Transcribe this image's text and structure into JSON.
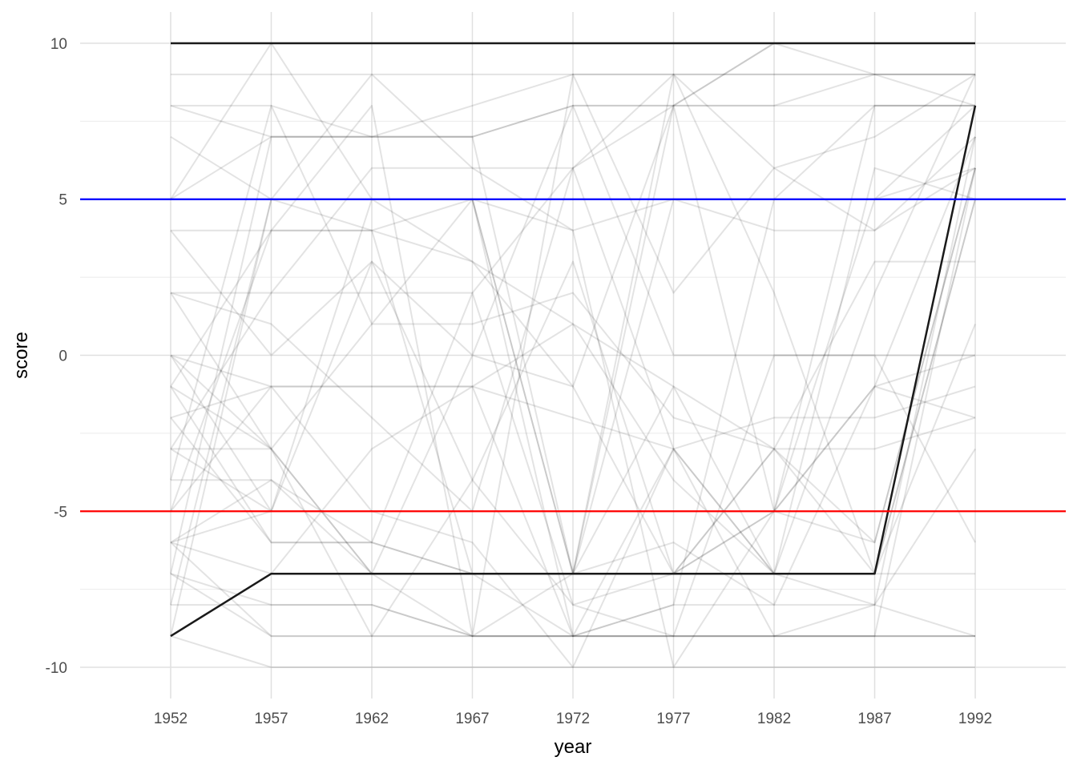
{
  "chart_data": {
    "type": "line",
    "title": "",
    "xlabel": "year",
    "ylabel": "score",
    "x": [
      1952,
      1957,
      1962,
      1967,
      1972,
      1977,
      1982,
      1987,
      1992
    ],
    "xlim": [
      1947.5,
      1996.5
    ],
    "ylim": [
      -11.0,
      11.0
    ],
    "y_ticks": [
      -10,
      -5,
      0,
      5,
      10
    ],
    "y_minor_ticks": [
      -7.5,
      -2.5,
      2.5,
      7.5
    ],
    "grid": true,
    "legend": "none",
    "reference_lines": [
      {
        "y": 5,
        "color": "#0000ff"
      },
      {
        "y": -5,
        "color": "#ff0000"
      }
    ],
    "highlighted_series": [
      {
        "values": [
          10,
          10,
          10,
          10,
          10,
          10,
          10,
          10,
          10
        ],
        "color": "#1a1a1a"
      },
      {
        "values": [
          -9,
          -7,
          -7,
          -7,
          -7,
          -7,
          -7,
          -7,
          8
        ],
        "color": "#1a1a1a"
      }
    ],
    "background_series": [
      {
        "values": [
          8,
          8,
          7,
          7,
          8,
          8,
          8,
          9,
          9
        ]
      },
      {
        "values": [
          8,
          7,
          7,
          8,
          9,
          9,
          9,
          9,
          8
        ]
      },
      {
        "values": [
          9,
          9,
          9,
          9,
          9,
          9,
          9,
          9,
          9
        ]
      },
      {
        "values": [
          7,
          5,
          5,
          5,
          4,
          5,
          5,
          5,
          6
        ]
      },
      {
        "values": [
          5,
          7,
          7,
          7,
          8,
          8,
          8,
          8,
          8
        ]
      },
      {
        "values": [
          4,
          4,
          4,
          3,
          1,
          -1,
          -3,
          -6,
          6
        ]
      },
      {
        "values": [
          2,
          2,
          2,
          2,
          6,
          9,
          6,
          7,
          9
        ]
      },
      {
        "values": [
          0,
          -1,
          -1,
          -1,
          -2,
          -3,
          -7,
          -7,
          5
        ]
      },
      {
        "values": [
          2,
          -3,
          -7,
          -7,
          -9,
          -9,
          -9,
          -9,
          6
        ]
      },
      {
        "values": [
          -1,
          -3,
          -7,
          -9,
          -9,
          -8,
          -8,
          -8,
          7
        ]
      },
      {
        "values": [
          -2,
          -6,
          -6,
          -7,
          -7,
          -7,
          -5,
          5,
          8
        ]
      },
      {
        "values": [
          -3,
          -5,
          -5,
          -5,
          -5,
          -5,
          -5,
          -1,
          0
        ]
      },
      {
        "values": [
          -4,
          -4,
          -6,
          -7,
          -7,
          -6,
          -8,
          -1,
          7
        ]
      },
      {
        "values": [
          -6,
          -9,
          -9,
          -9,
          -9,
          -9,
          -9,
          -9,
          -9
        ]
      },
      {
        "values": [
          -7,
          -9,
          -9,
          -9,
          -9,
          -9,
          -9,
          -9,
          -9
        ]
      },
      {
        "values": [
          -8,
          -8,
          -8,
          -9,
          -9,
          -9,
          -9,
          -9,
          -9
        ]
      },
      {
        "values": [
          -9,
          -10,
          -10,
          -10,
          -10,
          -10,
          -10,
          -10,
          -10
        ]
      },
      {
        "values": [
          -6,
          -5,
          5,
          5,
          -7,
          -7,
          -5,
          8,
          8
        ]
      },
      {
        "values": [
          5,
          10,
          5,
          3,
          -1,
          -7,
          -7,
          -7,
          5
        ]
      },
      {
        "values": [
          -1,
          4,
          4,
          5,
          -7,
          8,
          -5,
          -6,
          6
        ]
      },
      {
        "values": [
          -5,
          -1,
          -1,
          -1,
          1,
          -4,
          -7,
          -8,
          -3
        ]
      },
      {
        "values": [
          0,
          -3,
          1,
          1,
          2,
          -2,
          -3,
          3,
          3
        ]
      },
      {
        "values": [
          -4,
          8,
          1,
          5,
          -9,
          -8,
          5,
          8,
          8
        ]
      },
      {
        "values": [
          -7,
          -8,
          -8,
          -9,
          -7,
          9,
          2,
          -7,
          1
        ]
      },
      {
        "values": [
          -9,
          5,
          9,
          6,
          6,
          -3,
          -7,
          2,
          9
        ]
      },
      {
        "values": [
          -3,
          2,
          6,
          6,
          4,
          -10,
          -5,
          -1,
          -2
        ]
      },
      {
        "values": [
          -6,
          -4,
          -7,
          0,
          -1,
          8,
          10,
          10,
          10
        ]
      },
      {
        "values": [
          -7,
          7,
          7,
          7,
          -7,
          -1,
          -7,
          6,
          5
        ]
      },
      {
        "values": [
          -1,
          -6,
          -6,
          2,
          -8,
          -7,
          -3,
          -3,
          -2
        ]
      },
      {
        "values": [
          0,
          -5,
          3,
          -4,
          -8,
          -9,
          0,
          0,
          0
        ]
      },
      {
        "values": [
          2,
          1,
          -2,
          -5,
          6,
          8,
          10,
          9,
          9
        ]
      },
      {
        "values": [
          -2,
          -1,
          -5,
          -6,
          -10,
          -3,
          -2,
          -2,
          -1
        ]
      },
      {
        "values": [
          -5,
          4,
          8,
          -9,
          9,
          2,
          6,
          4,
          6
        ]
      },
      {
        "values": [
          -8,
          5,
          4,
          -7,
          -7,
          5,
          4,
          4,
          7
        ]
      },
      {
        "values": [
          -6,
          -7,
          -3,
          -1,
          -9,
          -3,
          -9,
          -8,
          -9
        ]
      },
      {
        "values": [
          4,
          0,
          3,
          0,
          8,
          0,
          0,
          0,
          -6
        ]
      },
      {
        "values": [
          -3,
          -3,
          -9,
          -4,
          3,
          -7,
          -3,
          -7,
          -7
        ]
      }
    ]
  }
}
